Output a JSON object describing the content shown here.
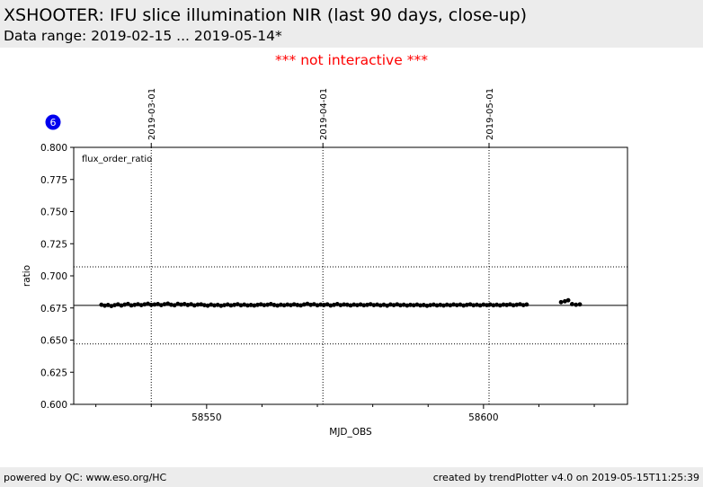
{
  "header": {
    "title": "XSHOOTER: IFU slice illumination NIR (last 90 days, close-up)",
    "subtitle": "Data range: 2019-02-15 ... 2019-05-14*"
  },
  "notice": "*** not interactive ***",
  "badge": "6",
  "footer": {
    "left": "powered by QC: www.eso.org/HC",
    "right": "created by trendPlotter v4.0 on 2019-05-15T11:25:39"
  },
  "colors": {
    "notice": "#ff0000",
    "badge": "#0000ee",
    "points": "#000000",
    "header_bg": "#ececec"
  },
  "chart_data": {
    "type": "scatter",
    "annotation": "flux_order_ratio",
    "xlabel": "MJD_OBS",
    "ylabel": "ratio",
    "xlim": [
      58526,
      58626
    ],
    "ylim": [
      0.6,
      0.8
    ],
    "yticks": [
      0.6,
      0.625,
      0.65,
      0.675,
      0.7,
      0.725,
      0.75,
      0.775,
      0.8
    ],
    "ytick_labels": [
      "0.600",
      "0.625",
      "0.650",
      "0.675",
      "0.700",
      "0.725",
      "0.750",
      "0.775",
      "0.800"
    ],
    "xticks": [
      58550,
      58600
    ],
    "xtick_labels": [
      "58550",
      "58600"
    ],
    "date_markers": [
      {
        "x": 58540,
        "label": "2019-03-01"
      },
      {
        "x": 58571,
        "label": "2019-04-01"
      },
      {
        "x": 58601,
        "label": "2019-05-01"
      }
    ],
    "reference_lines": {
      "mean": 0.677,
      "upper": 0.707,
      "lower": 0.647
    },
    "grid": false,
    "series": [
      {
        "points": [
          [
            58531.0,
            0.6775
          ],
          [
            58531.6,
            0.6768
          ],
          [
            58532.2,
            0.6773
          ],
          [
            58532.8,
            0.6765
          ],
          [
            58533.4,
            0.6772
          ],
          [
            58534.0,
            0.6778
          ],
          [
            58534.6,
            0.6769
          ],
          [
            58535.2,
            0.6776
          ],
          [
            58535.8,
            0.6781
          ],
          [
            58536.4,
            0.677
          ],
          [
            58537.0,
            0.6774
          ],
          [
            58537.6,
            0.6779
          ],
          [
            58538.2,
            0.6772
          ],
          [
            58538.8,
            0.6778
          ],
          [
            58539.4,
            0.6783
          ],
          [
            58540.0,
            0.6774
          ],
          [
            58540.6,
            0.6777
          ],
          [
            58541.2,
            0.678
          ],
          [
            58541.8,
            0.6772
          ],
          [
            58542.4,
            0.6779
          ],
          [
            58543.0,
            0.6784
          ],
          [
            58543.6,
            0.6775
          ],
          [
            58544.2,
            0.6771
          ],
          [
            58544.8,
            0.6782
          ],
          [
            58545.4,
            0.6776
          ],
          [
            58546.0,
            0.678
          ],
          [
            58546.6,
            0.6773
          ],
          [
            58547.2,
            0.6779
          ],
          [
            58547.8,
            0.677
          ],
          [
            58548.4,
            0.6776
          ],
          [
            58549.0,
            0.6778
          ],
          [
            58549.6,
            0.6772
          ],
          [
            58550.2,
            0.6768
          ],
          [
            58550.8,
            0.6776
          ],
          [
            58551.4,
            0.677
          ],
          [
            58552.0,
            0.6774
          ],
          [
            58552.6,
            0.6767
          ],
          [
            58553.2,
            0.6772
          ],
          [
            58553.8,
            0.6777
          ],
          [
            58554.4,
            0.677
          ],
          [
            58555.0,
            0.6774
          ],
          [
            58555.6,
            0.6779
          ],
          [
            58556.2,
            0.6771
          ],
          [
            58556.8,
            0.6776
          ],
          [
            58557.4,
            0.677
          ],
          [
            58558.0,
            0.6773
          ],
          [
            58558.6,
            0.6769
          ],
          [
            58559.2,
            0.6774
          ],
          [
            58559.8,
            0.6778
          ],
          [
            58560.4,
            0.6772
          ],
          [
            58561.0,
            0.6775
          ],
          [
            58561.6,
            0.678
          ],
          [
            58562.2,
            0.6773
          ],
          [
            58562.8,
            0.6769
          ],
          [
            58563.4,
            0.6775
          ],
          [
            58564.0,
            0.6771
          ],
          [
            58564.6,
            0.6776
          ],
          [
            58565.2,
            0.6772
          ],
          [
            58565.8,
            0.6778
          ],
          [
            58566.4,
            0.6773
          ],
          [
            58567.0,
            0.677
          ],
          [
            58567.6,
            0.6777
          ],
          [
            58568.2,
            0.6782
          ],
          [
            58568.8,
            0.6774
          ],
          [
            58569.4,
            0.6779
          ],
          [
            58570.0,
            0.6771
          ],
          [
            58570.6,
            0.6776
          ],
          [
            58571.2,
            0.6773
          ],
          [
            58571.8,
            0.6778
          ],
          [
            58572.4,
            0.6769
          ],
          [
            58573.0,
            0.6774
          ],
          [
            58573.6,
            0.678
          ],
          [
            58574.2,
            0.6772
          ],
          [
            58574.8,
            0.6777
          ],
          [
            58575.4,
            0.6775
          ],
          [
            58576.0,
            0.677
          ],
          [
            58576.6,
            0.6776
          ],
          [
            58577.2,
            0.6772
          ],
          [
            58577.8,
            0.6777
          ],
          [
            58578.4,
            0.6771
          ],
          [
            58579.0,
            0.6774
          ],
          [
            58579.6,
            0.6779
          ],
          [
            58580.2,
            0.6772
          ],
          [
            58580.8,
            0.6776
          ],
          [
            58581.4,
            0.677
          ],
          [
            58582.0,
            0.6775
          ],
          [
            58582.6,
            0.6768
          ],
          [
            58583.2,
            0.6777
          ],
          [
            58583.8,
            0.6772
          ],
          [
            58584.4,
            0.6778
          ],
          [
            58585.0,
            0.6771
          ],
          [
            58585.6,
            0.6775
          ],
          [
            58586.2,
            0.6769
          ],
          [
            58586.8,
            0.6774
          ],
          [
            58587.4,
            0.6771
          ],
          [
            58588.0,
            0.6776
          ],
          [
            58588.6,
            0.677
          ],
          [
            58589.2,
            0.6773
          ],
          [
            58589.8,
            0.6767
          ],
          [
            58590.4,
            0.6772
          ],
          [
            58591.0,
            0.6776
          ],
          [
            58591.6,
            0.677
          ],
          [
            58592.2,
            0.6774
          ],
          [
            58592.8,
            0.6769
          ],
          [
            58593.4,
            0.6775
          ],
          [
            58594.0,
            0.6771
          ],
          [
            58594.6,
            0.6777
          ],
          [
            58595.2,
            0.6772
          ],
          [
            58595.8,
            0.6776
          ],
          [
            58596.4,
            0.6769
          ],
          [
            58597.0,
            0.6774
          ],
          [
            58597.6,
            0.6778
          ],
          [
            58598.2,
            0.6771
          ],
          [
            58598.8,
            0.6775
          ],
          [
            58599.4,
            0.677
          ],
          [
            58600.0,
            0.6776
          ],
          [
            58600.6,
            0.6772
          ],
          [
            58601.2,
            0.6777
          ],
          [
            58601.8,
            0.6771
          ],
          [
            58602.4,
            0.6775
          ],
          [
            58603.0,
            0.677
          ],
          [
            58603.6,
            0.6776
          ],
          [
            58604.2,
            0.6773
          ],
          [
            58604.8,
            0.6778
          ],
          [
            58605.4,
            0.6771
          ],
          [
            58606.0,
            0.6775
          ],
          [
            58606.6,
            0.6779
          ],
          [
            58607.2,
            0.6772
          ],
          [
            58607.8,
            0.6777
          ],
          [
            58614.0,
            0.6795
          ],
          [
            58614.7,
            0.6802
          ],
          [
            58615.3,
            0.681
          ],
          [
            58616.0,
            0.678
          ],
          [
            58616.7,
            0.6775
          ],
          [
            58617.4,
            0.6778
          ]
        ]
      }
    ]
  }
}
